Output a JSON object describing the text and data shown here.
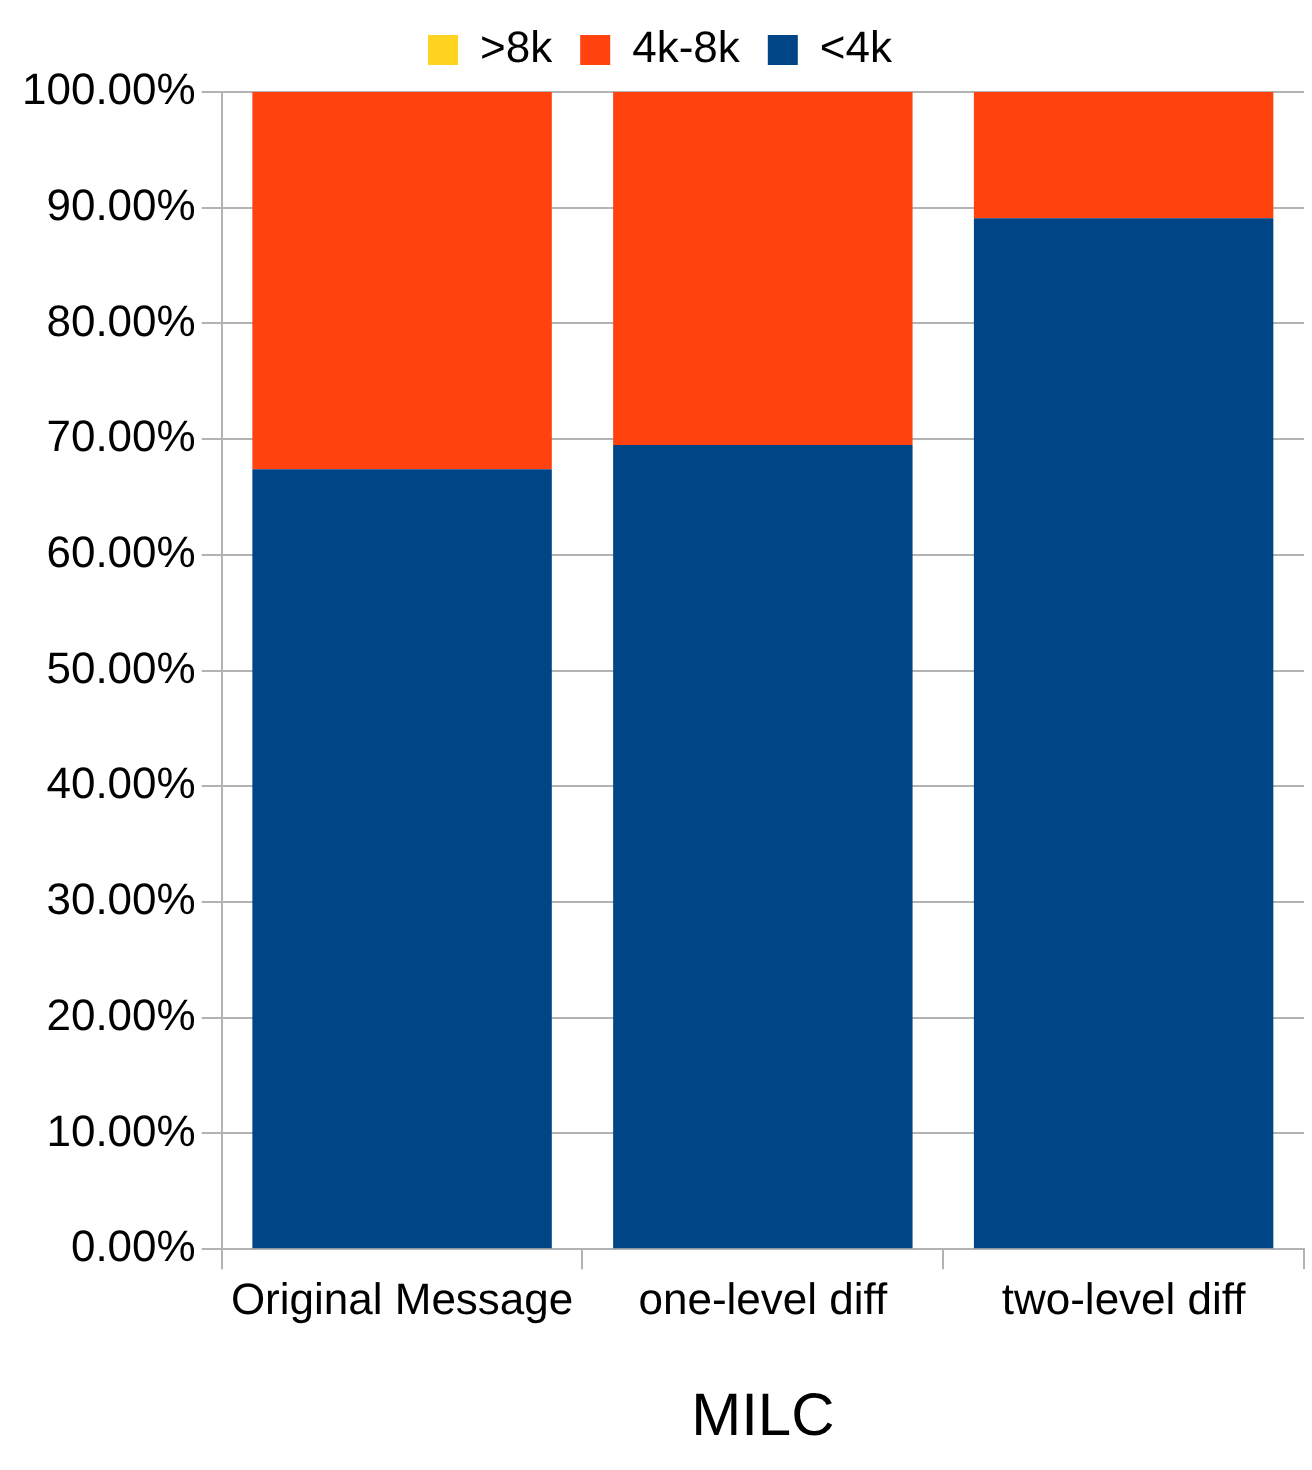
{
  "chart_data": {
    "type": "bar",
    "stacked": true,
    "xlabel": "MILC",
    "categories": [
      "Original Message",
      "one-level diff",
      "two-level diff"
    ],
    "series": [
      {
        "name": "<4k",
        "color": "#004586",
        "values": [
          67.4,
          69.5,
          89.1
        ]
      },
      {
        "name": "4k-8k",
        "color": "#ff420e",
        "values": [
          32.6,
          30.5,
          10.9
        ]
      },
      {
        "name": ">8k",
        "color": "#ffd320",
        "values": [
          0,
          0,
          0
        ]
      }
    ],
    "ylim": [
      0,
      100
    ],
    "yticks": [
      {
        "value": 0,
        "label": "0.00%"
      },
      {
        "value": 10,
        "label": "10.00%"
      },
      {
        "value": 20,
        "label": "20.00%"
      },
      {
        "value": 30,
        "label": "30.00%"
      },
      {
        "value": 40,
        "label": "40.00%"
      },
      {
        "value": 50,
        "label": "50.00%"
      },
      {
        "value": 60,
        "label": "60.00%"
      },
      {
        "value": 70,
        "label": "70.00%"
      },
      {
        "value": 80,
        "label": "80.00%"
      },
      {
        "value": 90,
        "label": "90.00%"
      },
      {
        "value": 100,
        "label": "100.00%"
      }
    ],
    "grid": "y",
    "legend": "top"
  }
}
